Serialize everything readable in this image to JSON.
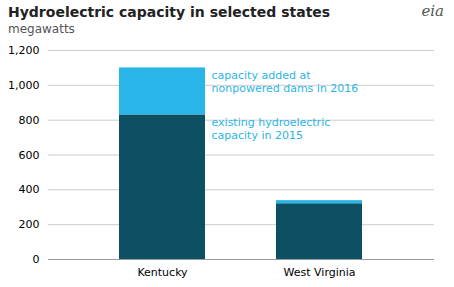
{
  "chart_data": {
    "type": "bar",
    "stacked": true,
    "title": "Hydroelectric capacity in selected states",
    "subtitle": "megawatts",
    "categories": [
      "Kentucky",
      "West Virginia"
    ],
    "series": [
      {
        "color": "#0d4f63",
        "values": [
          830,
          320
        ]
      },
      {
        "color": "#29b5e8",
        "values": [
          270,
          18
        ]
      }
    ],
    "ylim": [
      0,
      1200
    ],
    "yticks": [
      0,
      200,
      400,
      600,
      800,
      {
        "value": 1000,
        "label": "1,000"
      },
      {
        "value": 1200,
        "label": "1,200"
      }
    ],
    "grid": true,
    "annotations": [
      {
        "text": "capacity added at\nnonpowered dams in 2016",
        "color": "#29b5e8"
      },
      {
        "text": "existing hydroelectric\ncapacity in 2015",
        "color": "#29b5e8"
      },
      {
        "text": "eia"
      }
    ]
  }
}
